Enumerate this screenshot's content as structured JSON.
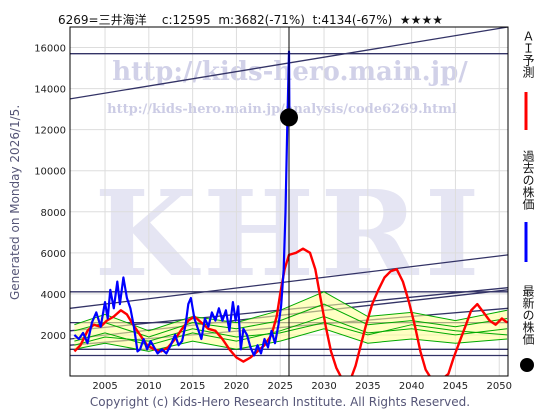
{
  "header": {
    "ticker": "6269=三井海洋",
    "current": "c:12595",
    "min_info": "m:3682(-71%)",
    "target_info": "t:4134(-67%)",
    "stars": "★★★★"
  },
  "side_text": "Generated on Monday 2026/1/5.",
  "footer": "Copyright (c) Kids-Hero Research Institute. All Rights Reserved.",
  "watermarks": {
    "url": "http://kids-hero.main.jp/",
    "analysis_url": "http://kids-hero.main.jp/analysis/code6269.html",
    "logo": "KHRI"
  },
  "legend": [
    {
      "label": "ＡＩ予測",
      "color": "#ff0000",
      "marker": "line"
    },
    {
      "label": "過去の株価",
      "color": "#0000ff",
      "marker": "line"
    },
    {
      "label": "最新の株価",
      "color": "#000000",
      "marker": "dot"
    }
  ],
  "colors": {
    "ai_forecast": "#ff0000",
    "past_price": "#0000ff",
    "latest_marker": "#000000",
    "band_lines": "#00aa00",
    "band_fill": "#ffff99",
    "trend_lines": "#333366",
    "watermark": "#9999cc"
  },
  "chart_data": {
    "type": "line",
    "xlim": [
      2001,
      2051
    ],
    "ylim": [
      0,
      17000
    ],
    "x_ticks": [
      2005,
      2010,
      2015,
      2020,
      2025,
      2030,
      2035,
      2040,
      2045,
      2050
    ],
    "y_ticks": [
      2000,
      4000,
      6000,
      8000,
      10000,
      12000,
      14000,
      16000
    ],
    "grid": true,
    "latest": {
      "x": 2026.0,
      "y": 12595
    },
    "series": [
      {
        "type": "past_price",
        "points": [
          [
            2001.5,
            2000
          ],
          [
            2002.0,
            1800
          ],
          [
            2002.5,
            2100
          ],
          [
            2003.0,
            1600
          ],
          [
            2003.5,
            2600
          ],
          [
            2004.0,
            3100
          ],
          [
            2004.5,
            2400
          ],
          [
            2005.0,
            3600
          ],
          [
            2005.3,
            2800
          ],
          [
            2005.6,
            4200
          ],
          [
            2006.0,
            3300
          ],
          [
            2006.4,
            4600
          ],
          [
            2006.7,
            3500
          ],
          [
            2007.1,
            4800
          ],
          [
            2007.5,
            3800
          ],
          [
            2007.9,
            3300
          ],
          [
            2008.3,
            2400
          ],
          [
            2008.7,
            1200
          ],
          [
            2009.0,
            1300
          ],
          [
            2009.4,
            1800
          ],
          [
            2009.8,
            1300
          ],
          [
            2010.2,
            1700
          ],
          [
            2010.6,
            1400
          ],
          [
            2011.0,
            1100
          ],
          [
            2011.5,
            1300
          ],
          [
            2012.0,
            1100
          ],
          [
            2012.5,
            1500
          ],
          [
            2013.0,
            2000
          ],
          [
            2013.4,
            1500
          ],
          [
            2013.8,
            1700
          ],
          [
            2014.2,
            2500
          ],
          [
            2014.5,
            3500
          ],
          [
            2014.8,
            3800
          ],
          [
            2015.2,
            2800
          ],
          [
            2015.6,
            2300
          ],
          [
            2016.0,
            1800
          ],
          [
            2016.4,
            2800
          ],
          [
            2016.8,
            2400
          ],
          [
            2017.2,
            3100
          ],
          [
            2017.6,
            2700
          ],
          [
            2018.0,
            3300
          ],
          [
            2018.4,
            2700
          ],
          [
            2018.8,
            3200
          ],
          [
            2019.2,
            2200
          ],
          [
            2019.6,
            3600
          ],
          [
            2019.9,
            2700
          ],
          [
            2020.2,
            3400
          ],
          [
            2020.5,
            1300
          ],
          [
            2020.8,
            2300
          ],
          [
            2021.2,
            2000
          ],
          [
            2021.6,
            1400
          ],
          [
            2022.0,
            1000
          ],
          [
            2022.4,
            1500
          ],
          [
            2022.8,
            1100
          ],
          [
            2023.2,
            1800
          ],
          [
            2023.6,
            1400
          ],
          [
            2024.0,
            2200
          ],
          [
            2024.4,
            1600
          ],
          [
            2024.8,
            2500
          ],
          [
            2025.1,
            3400
          ],
          [
            2025.4,
            5200
          ],
          [
            2025.6,
            8000
          ],
          [
            2025.8,
            12000
          ],
          [
            2026.0,
            15800
          ],
          [
            2026.05,
            12595
          ]
        ]
      },
      {
        "type": "ai_forecast",
        "points": [
          [
            2001.5,
            1200
          ],
          [
            2002.2,
            1500
          ],
          [
            2003.0,
            2200
          ],
          [
            2003.7,
            2500
          ],
          [
            2004.5,
            2400
          ],
          [
            2005.2,
            2700
          ],
          [
            2006.0,
            2900
          ],
          [
            2006.8,
            3200
          ],
          [
            2007.5,
            3000
          ],
          [
            2008.2,
            2500
          ],
          [
            2009.0,
            2000
          ],
          [
            2009.8,
            1500
          ],
          [
            2010.6,
            1300
          ],
          [
            2011.4,
            1200
          ],
          [
            2012.2,
            1400
          ],
          [
            2013.0,
            1800
          ],
          [
            2013.8,
            2300
          ],
          [
            2014.5,
            2700
          ],
          [
            2015.2,
            2900
          ],
          [
            2016.0,
            2600
          ],
          [
            2016.8,
            2300
          ],
          [
            2017.6,
            2200
          ],
          [
            2018.4,
            1800
          ],
          [
            2019.2,
            1300
          ],
          [
            2020.0,
            900
          ],
          [
            2020.8,
            700
          ],
          [
            2021.6,
            900
          ],
          [
            2022.4,
            1200
          ],
          [
            2023.2,
            1500
          ],
          [
            2024.0,
            2000
          ],
          [
            2024.6,
            2900
          ],
          [
            2025.0,
            4000
          ],
          [
            2025.5,
            5200
          ],
          [
            2026.0,
            5900
          ],
          [
            2026.8,
            6000
          ],
          [
            2027.6,
            6200
          ],
          [
            2028.4,
            6000
          ],
          [
            2029.0,
            5200
          ],
          [
            2029.6,
            3800
          ],
          [
            2030.2,
            2400
          ],
          [
            2030.8,
            1200
          ],
          [
            2031.4,
            400
          ],
          [
            2032.0,
            -100
          ],
          [
            2033.0,
            -200
          ],
          [
            2033.6,
            500
          ],
          [
            2034.2,
            1500
          ],
          [
            2034.8,
            2500
          ],
          [
            2035.5,
            3500
          ],
          [
            2036.2,
            4200
          ],
          [
            2036.9,
            4800
          ],
          [
            2037.6,
            5100
          ],
          [
            2038.3,
            5200
          ],
          [
            2039.0,
            4600
          ],
          [
            2039.7,
            3600
          ],
          [
            2040.4,
            2400
          ],
          [
            2041.0,
            1200
          ],
          [
            2041.6,
            300
          ],
          [
            2042.2,
            -100
          ],
          [
            2043.0,
            -200
          ],
          [
            2043.6,
            -100
          ],
          [
            2044.2,
            100
          ],
          [
            2044.8,
            900
          ],
          [
            2045.5,
            1700
          ],
          [
            2046.2,
            2500
          ],
          [
            2046.8,
            3200
          ],
          [
            2047.5,
            3500
          ],
          [
            2048.2,
            3100
          ],
          [
            2048.9,
            2700
          ],
          [
            2049.6,
            2500
          ],
          [
            2050.3,
            2800
          ],
          [
            2050.9,
            2600
          ]
        ]
      },
      {
        "type": "band_lines",
        "lines": [
          [
            [
              2001.5,
              1700
            ],
            [
              2005,
              2100
            ],
            [
              2010,
              1500
            ],
            [
              2015,
              2100
            ],
            [
              2020,
              1700
            ],
            [
              2025,
              2200
            ],
            [
              2030,
              2900
            ],
            [
              2035,
              2100
            ],
            [
              2040,
              2300
            ],
            [
              2045,
              2000
            ],
            [
              2050.9,
              2300
            ]
          ],
          [
            [
              2001.5,
              2200
            ],
            [
              2005,
              2600
            ],
            [
              2010,
              1900
            ],
            [
              2015,
              2600
            ],
            [
              2020,
              2300
            ],
            [
              2025,
              2700
            ],
            [
              2030,
              3500
            ],
            [
              2035,
              2500
            ],
            [
              2040,
              2700
            ],
            [
              2045,
              2400
            ],
            [
              2050.9,
              2800
            ]
          ],
          [
            [
              2001.5,
              1300
            ],
            [
              2005,
              1600
            ],
            [
              2010,
              1200
            ],
            [
              2015,
              1700
            ],
            [
              2020,
              1300
            ],
            [
              2025,
              1700
            ],
            [
              2030,
              2300
            ],
            [
              2035,
              1600
            ],
            [
              2040,
              1800
            ],
            [
              2045,
              1600
            ],
            [
              2050.9,
              1800
            ]
          ],
          [
            [
              2001.5,
              2500
            ],
            [
              2005,
              3000
            ],
            [
              2010,
              2200
            ],
            [
              2015,
              2900
            ],
            [
              2020,
              2600
            ],
            [
              2025,
              3200
            ],
            [
              2030,
              4100
            ],
            [
              2035,
              2900
            ],
            [
              2040,
              3100
            ],
            [
              2045,
              2700
            ],
            [
              2050.9,
              3200
            ]
          ],
          [
            [
              2001.5,
              1500
            ],
            [
              2005,
              1900
            ],
            [
              2010,
              1700
            ],
            [
              2015,
              2300
            ],
            [
              2020,
              1900
            ],
            [
              2025,
              2100
            ],
            [
              2030,
              2600
            ],
            [
              2035,
              2000
            ],
            [
              2040,
              2500
            ],
            [
              2045,
              2200
            ],
            [
              2050.9,
              2000
            ]
          ]
        ]
      },
      {
        "type": "trend_lines",
        "lines": [
          [
            [
              2001,
              13500
            ],
            [
              2051,
              17000
            ]
          ],
          [
            [
              2001,
              15700
            ],
            [
              2051,
              15700
            ]
          ],
          [
            [
              2001,
              4100
            ],
            [
              2051,
              4100
            ]
          ],
          [
            [
              2001,
              3300
            ],
            [
              2051,
              5900
            ]
          ],
          [
            [
              2001,
              2200
            ],
            [
              2051,
              4300
            ]
          ],
          [
            [
              2001,
              1800
            ],
            [
              2051,
              4200
            ]
          ],
          [
            [
              2001,
              2600
            ],
            [
              2051,
              2600
            ]
          ],
          [
            [
              2001,
              1500
            ],
            [
              2051,
              3300
            ]
          ],
          [
            [
              2001,
              1300
            ],
            [
              2051,
              1300
            ]
          ],
          [
            [
              2001,
              1000
            ],
            [
              2051,
              1000
            ]
          ]
        ]
      }
    ]
  }
}
